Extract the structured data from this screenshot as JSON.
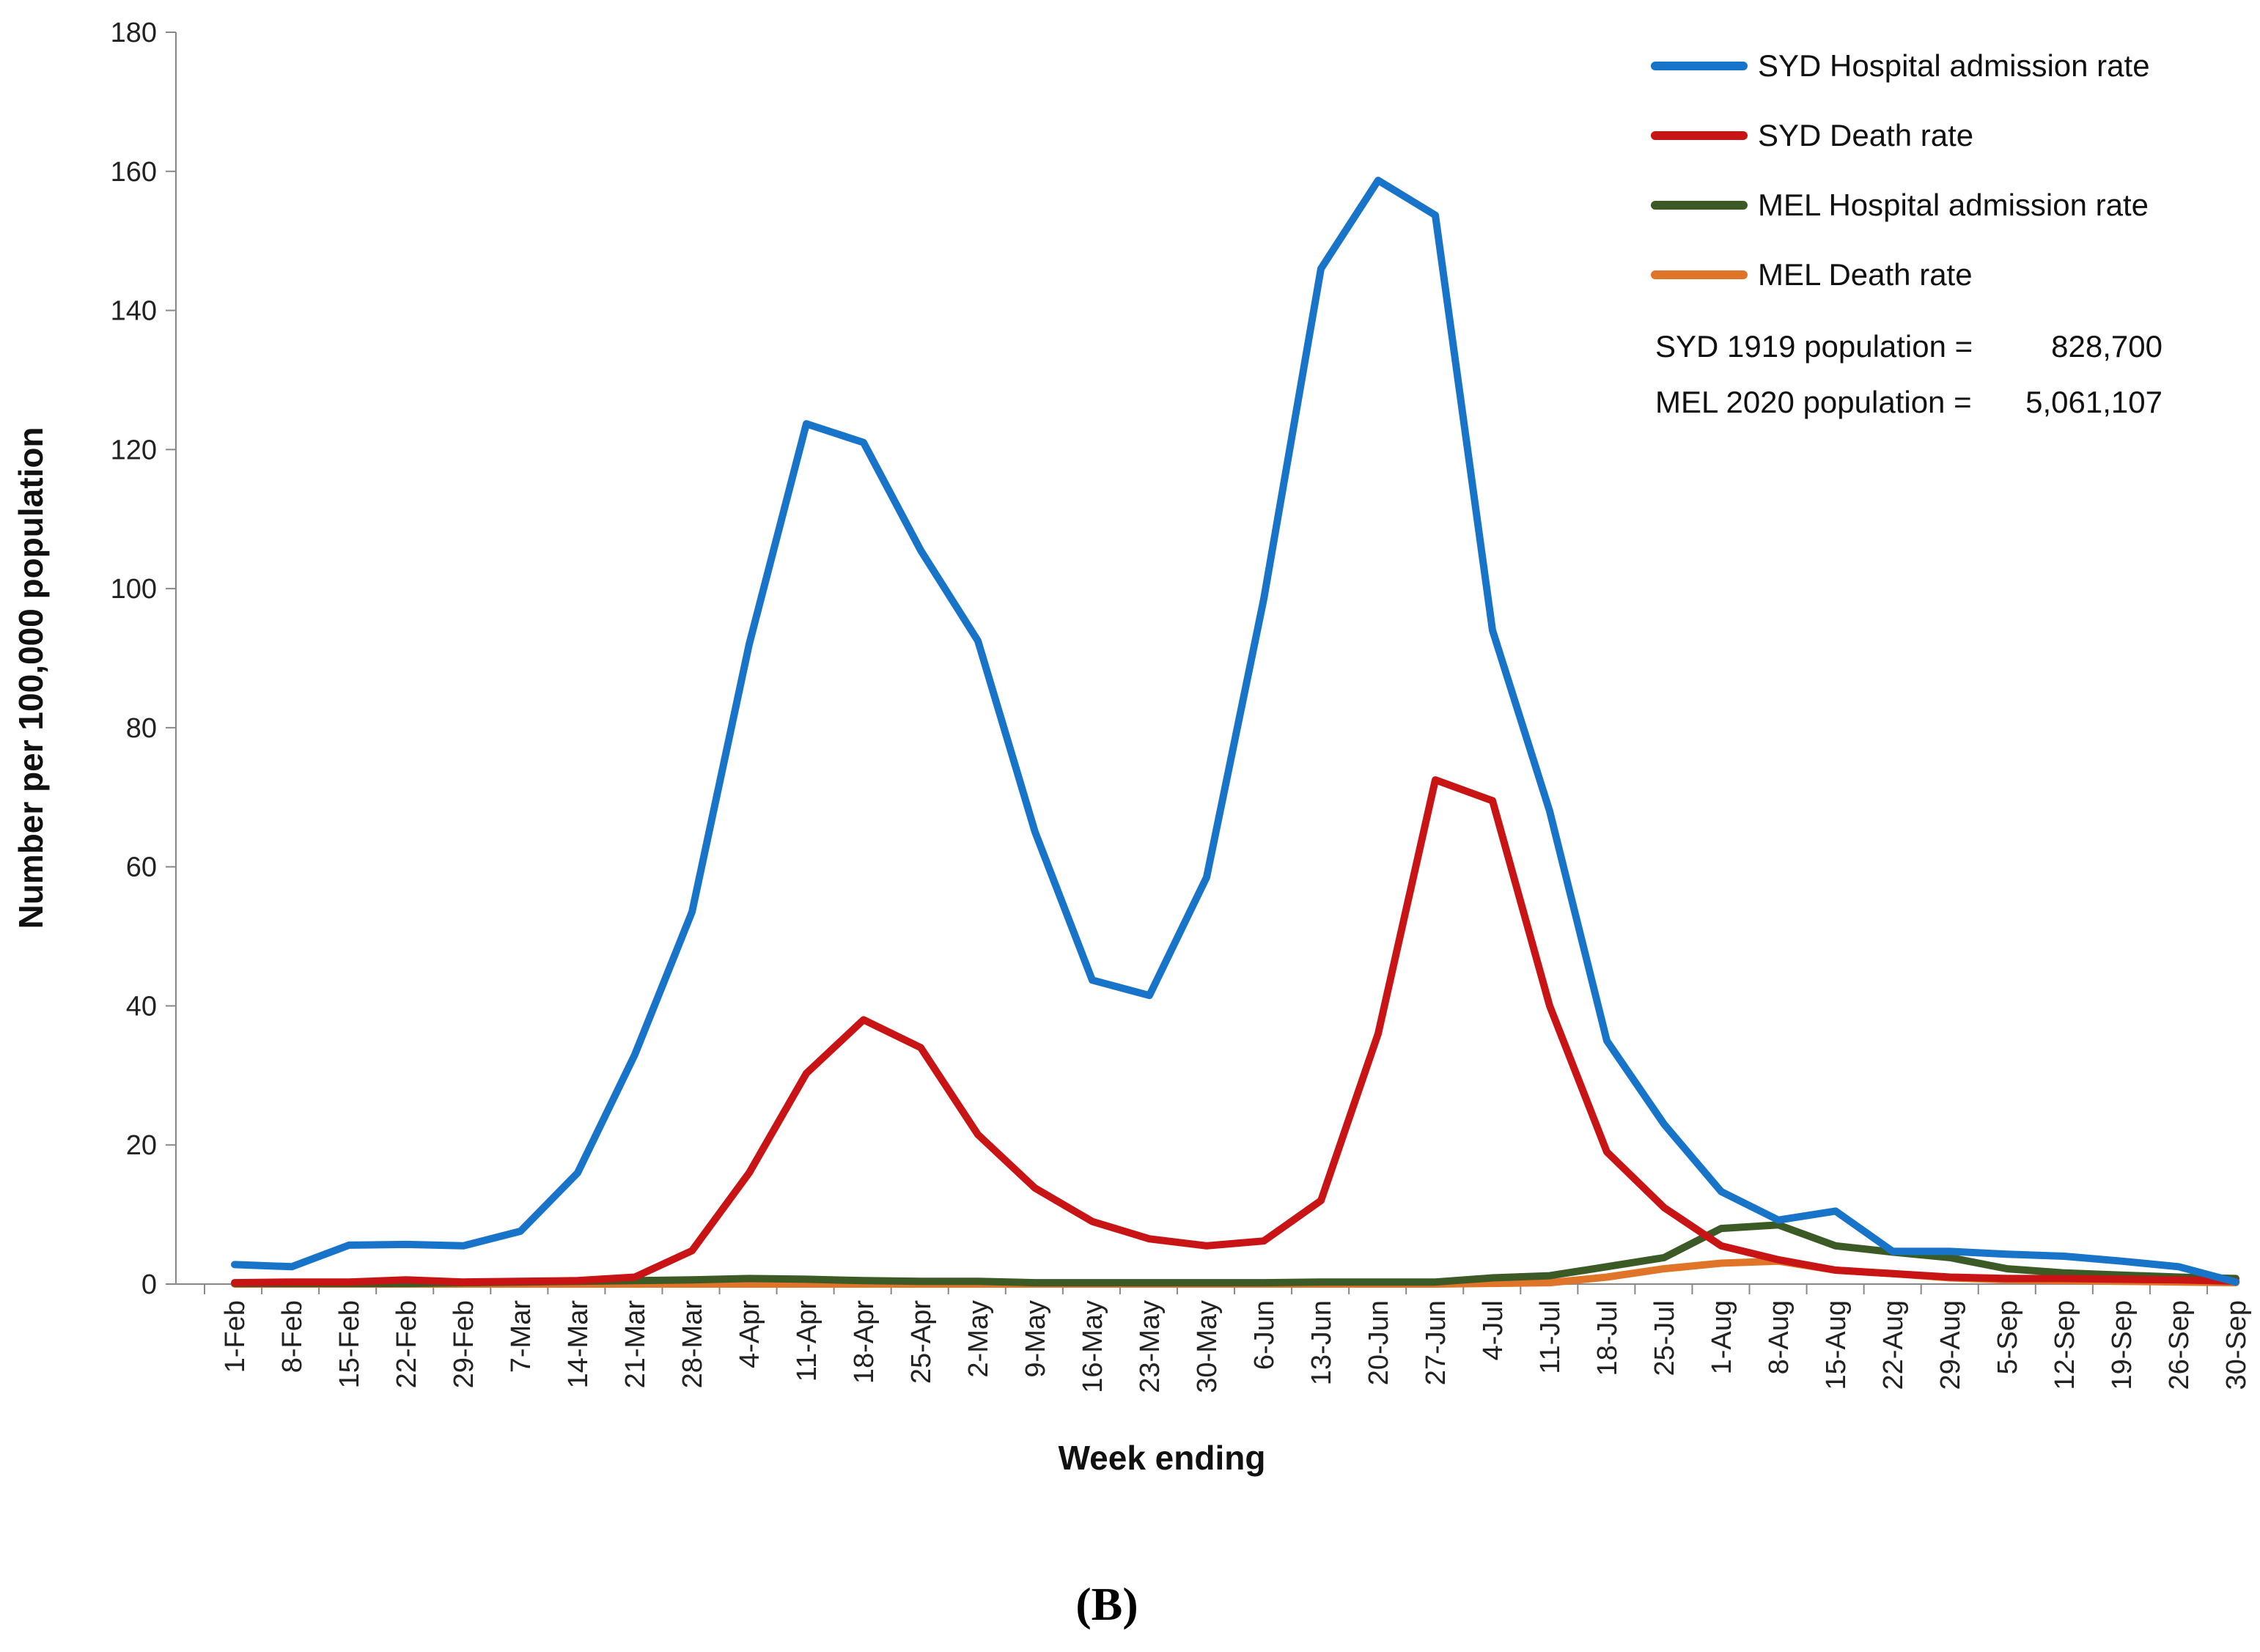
{
  "chart_data": {
    "type": "line",
    "title": "",
    "xlabel": "Week ending",
    "ylabel": "Number per 100,000 population",
    "ylim": [
      0,
      180
    ],
    "yticks": [
      0,
      20,
      40,
      60,
      80,
      100,
      120,
      140,
      160,
      180
    ],
    "grid": false,
    "legend_position": "top-right",
    "categories": [
      "1-Feb",
      "8-Feb",
      "15-Feb",
      "22-Feb",
      "29-Feb",
      "7-Mar",
      "14-Mar",
      "21-Mar",
      "28-Mar",
      "4-Apr",
      "11-Apr",
      "18-Apr",
      "25-Apr",
      "2-May",
      "9-May",
      "16-May",
      "23-May",
      "30-May",
      "6-Jun",
      "13-Jun",
      "20-Jun",
      "27-Jun",
      "4-Jul",
      "11-Jul",
      "18-Jul",
      "25-Jul",
      "1-Aug",
      "8-Aug",
      "15-Aug",
      "22-Aug",
      "29-Aug",
      "5-Sep",
      "12-Sep",
      "19-Sep",
      "26-Sep",
      "30-Sep"
    ],
    "series": [
      {
        "name": "SYD Hospital admission rate",
        "color": "#1874c8",
        "values": [
          2.8,
          2.5,
          5.6,
          5.7,
          5.5,
          7.6,
          16.0,
          33.0,
          53.5,
          92.0,
          123.7,
          121.0,
          105.5,
          92.5,
          65.0,
          43.7,
          41.5,
          58.5,
          98.5,
          146.0,
          158.7,
          153.7,
          94.0,
          68.0,
          35.0,
          23.0,
          13.3,
          9.2,
          10.5,
          4.7,
          4.7,
          4.3,
          4.0,
          3.3,
          2.5,
          0.3
        ]
      },
      {
        "name": "SYD Death rate",
        "color": "#c81414",
        "values": [
          0.2,
          0.3,
          0.3,
          0.6,
          0.3,
          0.4,
          0.5,
          1.0,
          4.8,
          16.0,
          30.3,
          38.0,
          34.0,
          21.5,
          13.8,
          9.0,
          6.5,
          5.5,
          6.2,
          12.0,
          36.0,
          72.5,
          69.5,
          40.0,
          19.0,
          11.0,
          5.5,
          3.5,
          2.0,
          1.5,
          1.0,
          0.8,
          0.8,
          0.7,
          0.6,
          0.4
        ]
      },
      {
        "name": "MEL Hospital admission rate",
        "color": "#3b5a25",
        "values": [
          0.1,
          0.1,
          0.1,
          0.1,
          0.2,
          0.3,
          0.4,
          0.5,
          0.6,
          0.8,
          0.7,
          0.5,
          0.4,
          0.4,
          0.2,
          0.2,
          0.2,
          0.2,
          0.2,
          0.3,
          0.3,
          0.3,
          0.9,
          1.2,
          2.5,
          3.8,
          8.0,
          8.5,
          5.5,
          4.6,
          3.8,
          2.2,
          1.6,
          1.3,
          1.0,
          0.8
        ]
      },
      {
        "name": "MEL Death rate",
        "color": "#e07428",
        "values": [
          0,
          0,
          0,
          0,
          0,
          0,
          0,
          0,
          0,
          0,
          0,
          0,
          0,
          0,
          0,
          0,
          0,
          0,
          0,
          0,
          0,
          0,
          0.1,
          0.2,
          1.0,
          2.2,
          3.0,
          3.3,
          2.0,
          1.5,
          0.9,
          0.6,
          0.5,
          0.4,
          0.3,
          0.2
        ]
      }
    ],
    "annotations": [
      {
        "label": "SYD 1919 population =",
        "value": "828,700"
      },
      {
        "label": "MEL 2020 population =",
        "value": "5,061,107"
      }
    ]
  },
  "panel_label": "(B)"
}
